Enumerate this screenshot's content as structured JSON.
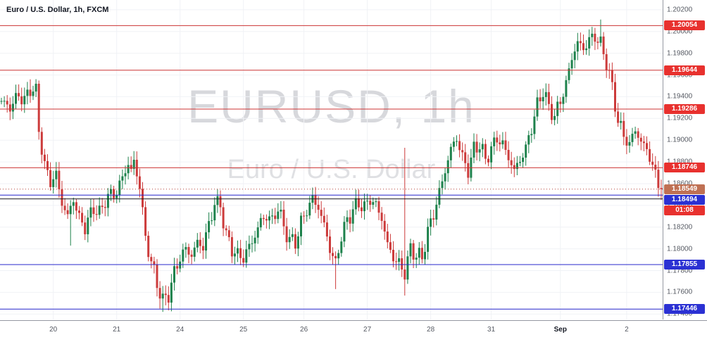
{
  "header": {
    "title": "Euro / U.S. Dollar, 1h, FXCM"
  },
  "watermark": {
    "line1": "EURUSD, 1h",
    "line2": "Euro / U.S. Dollar"
  },
  "chart_data": {
    "type": "candlestick",
    "symbol": "EURUSD",
    "interval": "1h",
    "exchange": "FXCM",
    "title": "Euro / U.S. Dollar, 1h, FXCM",
    "last_price": 1.18549,
    "countdown": "01:08",
    "grid": true,
    "y_axis": {
      "min": 1.1735,
      "max": 1.2029,
      "ticks": [
        "1.20200",
        "1.20000",
        "1.19800",
        "1.19600",
        "1.19400",
        "1.19200",
        "1.19000",
        "1.18800",
        "1.18600",
        "1.18400",
        "1.18200",
        "1.18000",
        "1.17800",
        "1.17600",
        "1.17400"
      ]
    },
    "x_axis": {
      "ticks": [
        {
          "label": "20",
          "index": 18
        },
        {
          "label": "21",
          "index": 40
        },
        {
          "label": "24",
          "index": 62
        },
        {
          "label": "25",
          "index": 84
        },
        {
          "label": "26",
          "index": 105
        },
        {
          "label": "27",
          "index": 127
        },
        {
          "label": "28",
          "index": 149
        },
        {
          "label": "31",
          "index": 170
        },
        {
          "label": "Sep",
          "index": 194,
          "strong": true
        },
        {
          "label": "2",
          "index": 217
        }
      ]
    },
    "levels": {
      "red_lines": [
        1.20054,
        1.19644,
        1.19286,
        1.18746
      ],
      "blue_lines": [
        1.18494,
        1.17855,
        1.17446
      ],
      "black_lines": [
        1.1846
      ],
      "current_price_dotted": 1.18549
    },
    "badges": [
      {
        "name": "red-level-badge-1",
        "text": "1.20054",
        "type": "red",
        "price": 1.20054
      },
      {
        "name": "red-level-badge-2",
        "text": "1.19644",
        "type": "red",
        "price": 1.19644
      },
      {
        "name": "red-level-badge-3",
        "text": "1.19286",
        "type": "red",
        "price": 1.19286
      },
      {
        "name": "red-level-badge-4",
        "text": "1.18746",
        "type": "red",
        "price": 1.18746
      },
      {
        "name": "current-price-badge",
        "text": "1.18549",
        "type": "orange",
        "price": 1.18549
      },
      {
        "name": "countdown-badge",
        "text": "01:08",
        "type": "red",
        "price": 1.18549,
        "offset": 15
      },
      {
        "name": "blue-level-badge-1",
        "text": "1.18494",
        "type": "blue",
        "price": 1.18494
      },
      {
        "name": "blue-level-badge-2",
        "text": "1.17855",
        "type": "blue",
        "price": 1.17855
      },
      {
        "name": "blue-level-badge-3",
        "text": "1.17446",
        "type": "blue",
        "price": 1.17446
      }
    ],
    "candle_count": 230,
    "price_path": [
      [
        0,
        1.1936
      ],
      [
        3,
        1.193
      ],
      [
        6,
        1.1942
      ],
      [
        8,
        1.1936
      ],
      [
        10,
        1.1948
      ],
      [
        12,
        1.1944
      ],
      [
        13,
        1.191
      ],
      [
        15,
        1.1876
      ],
      [
        17,
        1.1862
      ],
      [
        19,
        1.1868
      ],
      [
        21,
        1.1842
      ],
      [
        23,
        1.183
      ],
      [
        25,
        1.1846
      ],
      [
        27,
        1.1828
      ],
      [
        29,
        1.182
      ],
      [
        32,
        1.1838
      ],
      [
        34,
        1.1832
      ],
      [
        36,
        1.1845
      ],
      [
        38,
        1.185
      ],
      [
        40,
        1.1852
      ],
      [
        42,
        1.1866
      ],
      [
        44,
        1.1878
      ],
      [
        45,
        1.1872
      ],
      [
        46,
        1.188
      ],
      [
        48,
        1.1858
      ],
      [
        50,
        1.181
      ],
      [
        52,
        1.1788
      ],
      [
        54,
        1.1768
      ],
      [
        56,
        1.1752
      ],
      [
        58,
        1.1758
      ],
      [
        60,
        1.1778
      ],
      [
        62,
        1.1792
      ],
      [
        64,
        1.18
      ],
      [
        66,
        1.1794
      ],
      [
        68,
        1.1806
      ],
      [
        70,
        1.1802
      ],
      [
        72,
        1.1822
      ],
      [
        74,
        1.1842
      ],
      [
        76,
        1.184
      ],
      [
        78,
        1.1812
      ],
      [
        80,
        1.18
      ],
      [
        82,
        1.1794
      ],
      [
        84,
        1.1792
      ],
      [
        86,
        1.1802
      ],
      [
        88,
        1.1812
      ],
      [
        90,
        1.1826
      ],
      [
        92,
        1.183
      ],
      [
        94,
        1.1826
      ],
      [
        96,
        1.1838
      ],
      [
        98,
        1.182
      ],
      [
        100,
        1.1808
      ],
      [
        102,
        1.1806
      ],
      [
        104,
        1.1824
      ],
      [
        106,
        1.1836
      ],
      [
        108,
        1.1846
      ],
      [
        110,
        1.1838
      ],
      [
        112,
        1.1822
      ],
      [
        114,
        1.18
      ],
      [
        116,
        1.1786
      ],
      [
        118,
        1.1812
      ],
      [
        120,
        1.1826
      ],
      [
        122,
        1.1836
      ],
      [
        124,
        1.1842
      ],
      [
        126,
        1.1838
      ],
      [
        128,
        1.1846
      ],
      [
        130,
        1.184
      ],
      [
        132,
        1.1828
      ],
      [
        134,
        1.1804
      ],
      [
        136,
        1.1792
      ],
      [
        138,
        1.1786
      ],
      [
        140,
        1.1778
      ],
      [
        142,
        1.18
      ],
      [
        144,
        1.1794
      ],
      [
        146,
        1.1792
      ],
      [
        148,
        1.1816
      ],
      [
        150,
        1.1832
      ],
      [
        152,
        1.1852
      ],
      [
        154,
        1.1872
      ],
      [
        156,
        1.1892
      ],
      [
        158,
        1.1902
      ],
      [
        160,
        1.1884
      ],
      [
        162,
        1.1872
      ],
      [
        164,
        1.1892
      ],
      [
        166,
        1.1896
      ],
      [
        168,
        1.1882
      ],
      [
        170,
        1.1892
      ],
      [
        172,
        1.1902
      ],
      [
        174,
        1.1896
      ],
      [
        176,
        1.1884
      ],
      [
        178,
        1.1872
      ],
      [
        180,
        1.1882
      ],
      [
        182,
        1.1892
      ],
      [
        184,
        1.1912
      ],
      [
        186,
        1.1932
      ],
      [
        188,
        1.1946
      ],
      [
        190,
        1.193
      ],
      [
        192,
        1.1922
      ],
      [
        194,
        1.1936
      ],
      [
        196,
        1.1952
      ],
      [
        198,
        1.1976
      ],
      [
        200,
        1.199
      ],
      [
        202,
        1.1984
      ],
      [
        204,
        1.1992
      ],
      [
        206,
        1.1996
      ],
      [
        208,
        1.1988
      ],
      [
        210,
        1.1972
      ],
      [
        212,
        1.1948
      ],
      [
        214,
        1.1918
      ],
      [
        216,
        1.1904
      ],
      [
        218,
        1.1896
      ],
      [
        220,
        1.191
      ],
      [
        222,
        1.1898
      ],
      [
        224,
        1.1892
      ],
      [
        226,
        1.1876
      ],
      [
        228,
        1.186
      ],
      [
        229,
        1.18549
      ]
    ],
    "wick_overrides": [
      {
        "i": 10,
        "high": 1.1956
      },
      {
        "i": 24,
        "low": 1.1803
      },
      {
        "i": 30,
        "low": 1.1806
      },
      {
        "i": 55,
        "low": 1.1745
      },
      {
        "i": 56,
        "low": 1.1742
      },
      {
        "i": 57,
        "low": 1.1748
      },
      {
        "i": 116,
        "low": 1.1763
      },
      {
        "i": 140,
        "high": 1.1893,
        "low": 1.1757
      },
      {
        "i": 208,
        "high": 1.2011
      },
      {
        "i": 229,
        "low": 1.1845
      }
    ],
    "colors": {
      "up": "#1e824c",
      "down": "#cc3b3b",
      "red_line": "#cc3333",
      "blue_line": "#2727cc",
      "black_line": "#1c1c22",
      "dotted_line": "#b5403a",
      "badge_red": "#e8312e",
      "badge_orange": "#bf7053",
      "badge_blue": "#2b31d3",
      "grid": "#f0f2f6",
      "axis_text": "#555962"
    }
  }
}
